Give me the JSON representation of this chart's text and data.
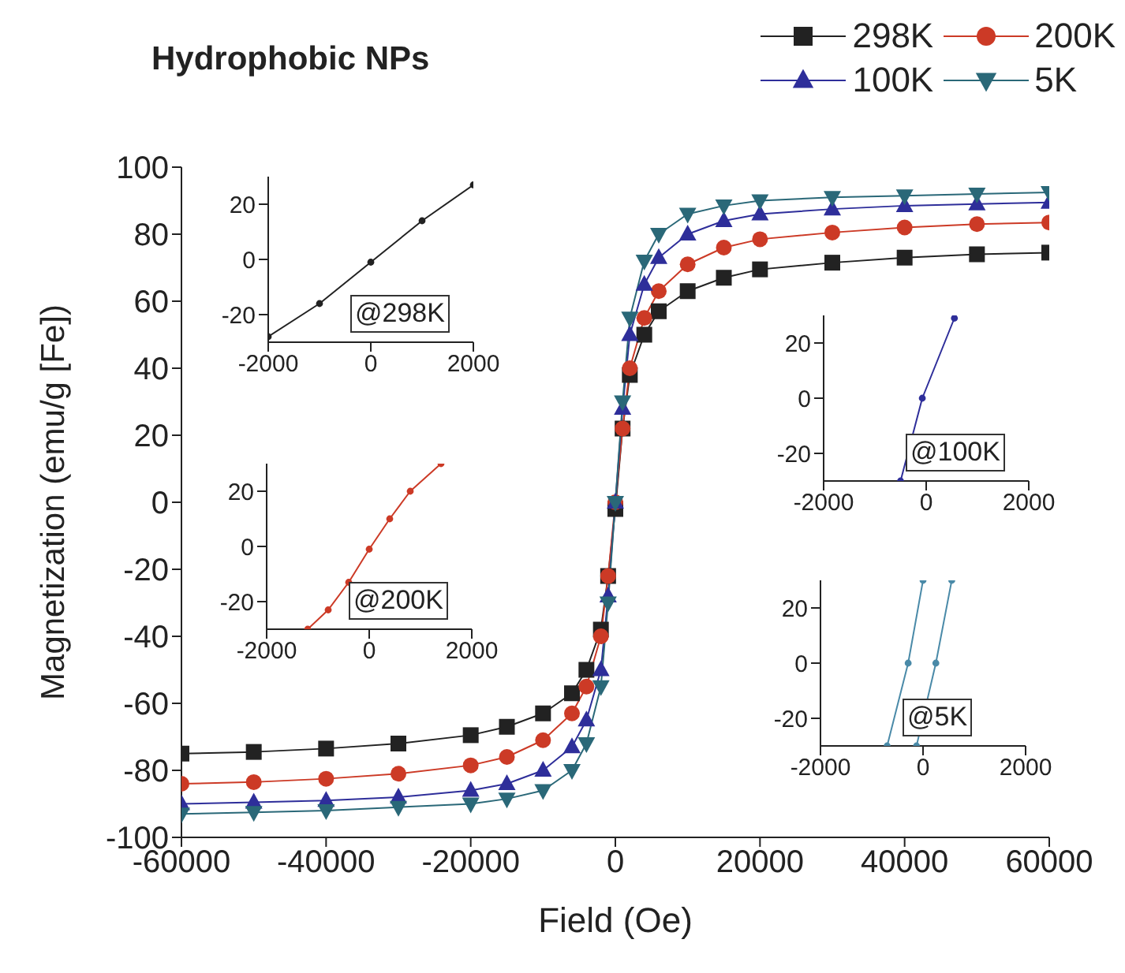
{
  "chart_data": [
    {
      "type": "line",
      "title": "Hydrophobic NPs",
      "xlabel": "Field (Oe)",
      "ylabel": "Magnetization (emu/g [Fe])",
      "legend": "top right",
      "xlim": [
        -60000,
        60000
      ],
      "xticks": [
        -60000,
        -40000,
        -20000,
        0,
        20000,
        40000,
        60000
      ],
      "ylim": [
        -100,
        100
      ],
      "yticks": [
        -100,
        -80,
        -60,
        -40,
        -20,
        0,
        20,
        40,
        60,
        80,
        100
      ],
      "x": [
        -60000,
        -50000,
        -40000,
        -30000,
        -20000,
        -15000,
        -10000,
        -6000,
        -4000,
        -2000,
        -1000,
        0,
        1000,
        2000,
        4000,
        6000,
        10000,
        15000,
        20000,
        30000,
        40000,
        50000,
        60000
      ],
      "series": [
        {
          "name": "298K",
          "color": "#222222",
          "marker": "square",
          "values": [
            -75,
            -74.5,
            -73.5,
            -72,
            -69.5,
            -67,
            -63,
            -57,
            -50,
            -38,
            -22,
            -2,
            22,
            38,
            50,
            57,
            63,
            67,
            69.5,
            71.5,
            73,
            74,
            74.5
          ]
        },
        {
          "name": "200K",
          "color": "#cc3a26",
          "marker": "circle",
          "values": [
            -84,
            -83.5,
            -82.5,
            -81,
            -78.5,
            -76,
            -71,
            -63,
            -55,
            -40,
            -22,
            0,
            22,
            40,
            55,
            63,
            71,
            76,
            78.5,
            80.5,
            82,
            83,
            83.5
          ]
        },
        {
          "name": "100K",
          "color": "#2e2e9a",
          "marker": "triangle",
          "values": [
            -90,
            -89.5,
            -89,
            -88,
            -86,
            -84,
            -80,
            -73,
            -65,
            -50,
            -28,
            0,
            28,
            50,
            65,
            73,
            80,
            84,
            86,
            87.5,
            88.5,
            89,
            89.5
          ]
        },
        {
          "name": "5K",
          "color": "#2a6878",
          "marker": "triangle-down",
          "values": [
            -93,
            -92.5,
            -92,
            -91,
            -90,
            -88.5,
            -86,
            -80,
            -72,
            -55,
            -30,
            0,
            30,
            55,
            72,
            80,
            86,
            88.5,
            90,
            91,
            91.5,
            92,
            92.5
          ]
        }
      ]
    },
    {
      "type": "line",
      "xlim": [
        -2000,
        2000
      ],
      "xticks": [
        -2000,
        0,
        2000
      ],
      "ylim": [
        -30,
        30
      ],
      "yticks": [
        -20,
        0,
        20
      ],
      "annotations": [
        "@298K"
      ],
      "series": [
        {
          "color": "#222222",
          "marker": "circle",
          "x": [
            -2000,
            -1000,
            0,
            1000,
            2000
          ],
          "values": [
            -28,
            -16,
            -1,
            14,
            27
          ]
        }
      ]
    },
    {
      "type": "line",
      "xlim": [
        -2000,
        2000
      ],
      "xticks": [
        -2000,
        0,
        2000
      ],
      "ylim": [
        -30,
        30
      ],
      "yticks": [
        -20,
        0,
        20
      ],
      "annotations": [
        "@200K"
      ],
      "series": [
        {
          "color": "#cc3a26",
          "marker": "circle",
          "x": [
            -1200,
            -800,
            -400,
            0,
            400,
            800,
            1400
          ],
          "values": [
            -30,
            -23,
            -13,
            -1,
            10,
            20,
            30
          ]
        }
      ]
    },
    {
      "type": "line",
      "xlim": [
        -2000,
        2000
      ],
      "xticks": [
        -2000,
        0,
        2000
      ],
      "ylim": [
        -30,
        30
      ],
      "yticks": [
        -20,
        0,
        20
      ],
      "annotations": [
        "@100K"
      ],
      "series": [
        {
          "color": "#2e2e9a",
          "marker": "circle",
          "x": [
            -500,
            -76,
            550
          ],
          "values": [
            -30,
            0,
            29
          ]
        }
      ]
    },
    {
      "type": "line",
      "xlim": [
        -2000,
        2000
      ],
      "xticks": [
        -2000,
        0,
        2000
      ],
      "ylim": [
        -30,
        30
      ],
      "yticks": [
        -20,
        0,
        20
      ],
      "annotations": [
        "@5K"
      ],
      "series": [
        {
          "color": "#4a8aa8",
          "marker": "circle",
          "x": [
            -700,
            -290,
            0
          ],
          "values": [
            -30,
            0,
            30
          ]
        },
        {
          "color": "#4a8aa8",
          "marker": "circle",
          "x": [
            -127,
            250,
            560
          ],
          "values": [
            -30,
            0,
            30
          ]
        }
      ]
    }
  ]
}
